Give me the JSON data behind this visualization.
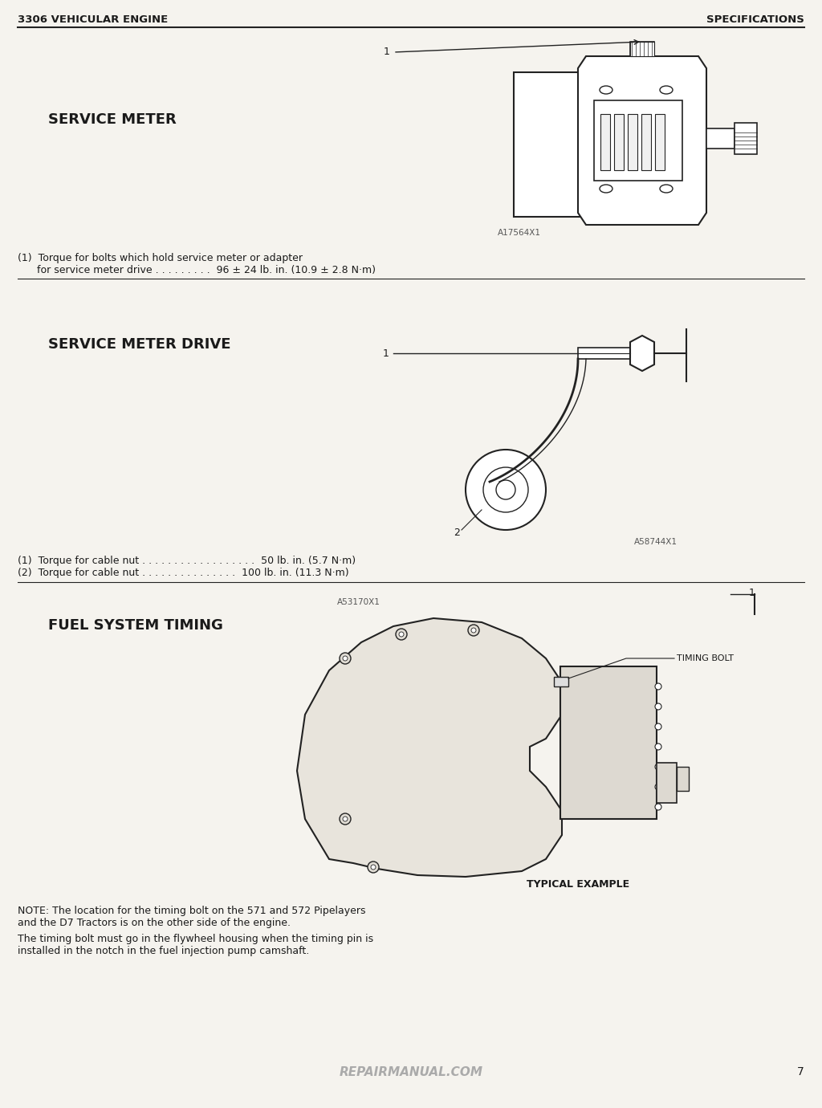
{
  "bg_color": "#ffffff",
  "page_bg": "#f5f3ee",
  "text_color": "#1a1a1a",
  "header_left": "3306 VEHICULAR ENGINE",
  "header_right": "SPECIFICATIONS",
  "page_number": "7",
  "section1_title": "SERVICE METER",
  "section1_img_label": "A17564X1",
  "section1_spec1": "(1)  Torque for bolts which hold service meter or adapter",
  "section1_spec1b": "      for service meter drive . . . . . . . . .  96 ± 24 lb. in. (10.9 ± 2.8 N·m)",
  "section2_title": "SERVICE METER DRIVE",
  "section2_img_label": "A58744X1",
  "section2_spec1": "(1)  Torque for cable nut . . . . . . . . . . . . . . . . . .  50 lb. in. (5.7 N·m)",
  "section2_spec2": "(2)  Torque for cable nut . . . . . . . . . . . . . . .  100 lb. in. (11.3 N·m)",
  "section3_title": "FUEL SYSTEM TIMING",
  "section3_img_label": "A53170X1",
  "section3_annotation": "TIMING BOLT",
  "section3_caption": "TYPICAL EXAMPLE",
  "section3_note1": "NOTE: The location for the timing bolt on the 571 and 572 Pipelayers",
  "section3_note2": "and the D7 Tractors is on the other side of the engine.",
  "section3_note4": "The timing bolt must go in the flywheel housing when the timing pin is",
  "section3_note5": "installed in the notch in the fuel injection pump camshaft.",
  "footer_text": "REPAIRMANUAL.COM",
  "divider_color": "#222222",
  "draw_color": "#222222"
}
